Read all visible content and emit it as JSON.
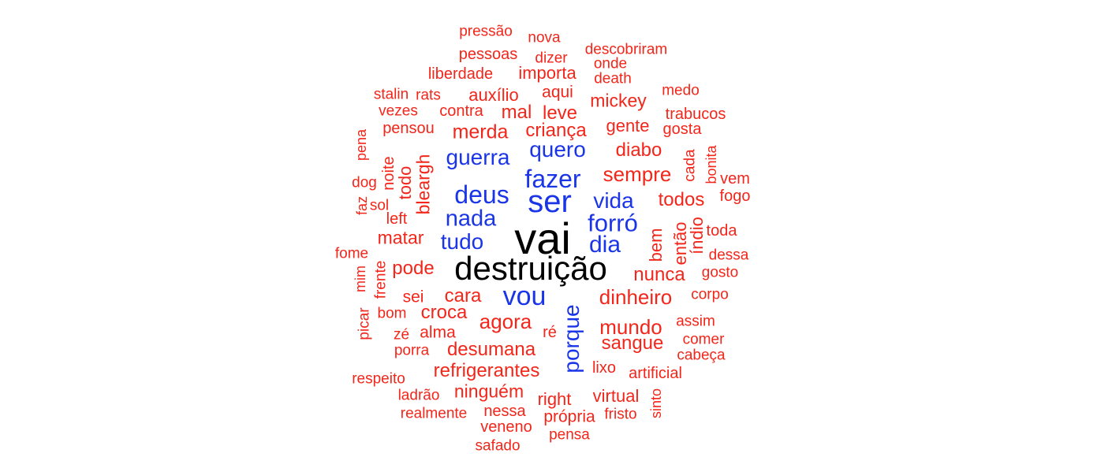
{
  "colors": {
    "top": "#000000",
    "mid": "#1a35e8",
    "low": "#f2261a",
    "background": "#ffffff"
  },
  "words": [
    {
      "text": "vai",
      "tier": "top"
    },
    {
      "text": "destruição",
      "tier": "top"
    },
    {
      "text": "ser",
      "tier": "mid"
    },
    {
      "text": "fazer",
      "tier": "mid"
    },
    {
      "text": "deus",
      "tier": "mid"
    },
    {
      "text": "vou",
      "tier": "mid"
    },
    {
      "text": "porque",
      "tier": "mid"
    },
    {
      "text": "forró",
      "tier": "mid"
    },
    {
      "text": "nada",
      "tier": "mid"
    },
    {
      "text": "dia",
      "tier": "mid"
    },
    {
      "text": "tudo",
      "tier": "mid"
    },
    {
      "text": "guerra",
      "tier": "mid"
    },
    {
      "text": "quero",
      "tier": "mid"
    },
    {
      "text": "vida",
      "tier": "mid"
    },
    {
      "text": "pressão",
      "tier": "low"
    },
    {
      "text": "nova",
      "tier": "low"
    },
    {
      "text": "descobriram",
      "tier": "low"
    },
    {
      "text": "pessoas",
      "tier": "low"
    },
    {
      "text": "dizer",
      "tier": "low"
    },
    {
      "text": "onde",
      "tier": "low"
    },
    {
      "text": "liberdade",
      "tier": "low"
    },
    {
      "text": "importa",
      "tier": "low"
    },
    {
      "text": "death",
      "tier": "low"
    },
    {
      "text": "stalin",
      "tier": "low"
    },
    {
      "text": "rats",
      "tier": "low"
    },
    {
      "text": "auxílio",
      "tier": "low"
    },
    {
      "text": "aqui",
      "tier": "low"
    },
    {
      "text": "medo",
      "tier": "low"
    },
    {
      "text": "mickey",
      "tier": "low"
    },
    {
      "text": "vezes",
      "tier": "low"
    },
    {
      "text": "contra",
      "tier": "low"
    },
    {
      "text": "mal",
      "tier": "low"
    },
    {
      "text": "leve",
      "tier": "low"
    },
    {
      "text": "trabucos",
      "tier": "low"
    },
    {
      "text": "pensou",
      "tier": "low"
    },
    {
      "text": "merda",
      "tier": "low"
    },
    {
      "text": "criança",
      "tier": "low"
    },
    {
      "text": "gente",
      "tier": "low"
    },
    {
      "text": "gosta",
      "tier": "low"
    },
    {
      "text": "pena",
      "tier": "low"
    },
    {
      "text": "diabo",
      "tier": "low"
    },
    {
      "text": "bonita",
      "tier": "low"
    },
    {
      "text": "noite",
      "tier": "low"
    },
    {
      "text": "todo",
      "tier": "low"
    },
    {
      "text": "bleargh",
      "tier": "low"
    },
    {
      "text": "sempre",
      "tier": "low"
    },
    {
      "text": "cada",
      "tier": "low"
    },
    {
      "text": "vem",
      "tier": "low"
    },
    {
      "text": "dog",
      "tier": "low"
    },
    {
      "text": "fogo",
      "tier": "low"
    },
    {
      "text": "faz",
      "tier": "low"
    },
    {
      "text": "sol",
      "tier": "low"
    },
    {
      "text": "todos",
      "tier": "low"
    },
    {
      "text": "left",
      "tier": "low"
    },
    {
      "text": "toda",
      "tier": "low"
    },
    {
      "text": "índio",
      "tier": "low"
    },
    {
      "text": "matar",
      "tier": "low"
    },
    {
      "text": "então",
      "tier": "low"
    },
    {
      "text": "bem",
      "tier": "low"
    },
    {
      "text": "fome",
      "tier": "low"
    },
    {
      "text": "dessa",
      "tier": "low"
    },
    {
      "text": "frente",
      "tier": "low"
    },
    {
      "text": "pode",
      "tier": "low"
    },
    {
      "text": "gosto",
      "tier": "low"
    },
    {
      "text": "nunca",
      "tier": "low"
    },
    {
      "text": "mim",
      "tier": "low"
    },
    {
      "text": "sei",
      "tier": "low"
    },
    {
      "text": "cara",
      "tier": "low"
    },
    {
      "text": "corpo",
      "tier": "low"
    },
    {
      "text": "dinheiro",
      "tier": "low"
    },
    {
      "text": "bom",
      "tier": "low"
    },
    {
      "text": "croca",
      "tier": "low"
    },
    {
      "text": "assim",
      "tier": "low"
    },
    {
      "text": "agora",
      "tier": "low"
    },
    {
      "text": "picar",
      "tier": "low"
    },
    {
      "text": "mundo",
      "tier": "low"
    },
    {
      "text": "zé",
      "tier": "low"
    },
    {
      "text": "alma",
      "tier": "low"
    },
    {
      "text": "ré",
      "tier": "low"
    },
    {
      "text": "comer",
      "tier": "low"
    },
    {
      "text": "sangue",
      "tier": "low"
    },
    {
      "text": "porra",
      "tier": "low"
    },
    {
      "text": "desumana",
      "tier": "low"
    },
    {
      "text": "cabeça",
      "tier": "low"
    },
    {
      "text": "lixo",
      "tier": "low"
    },
    {
      "text": "refrigerantes",
      "tier": "low"
    },
    {
      "text": "artificial",
      "tier": "low"
    },
    {
      "text": "respeito",
      "tier": "low"
    },
    {
      "text": "ninguém",
      "tier": "low"
    },
    {
      "text": "ladrão",
      "tier": "low"
    },
    {
      "text": "right",
      "tier": "low"
    },
    {
      "text": "virtual",
      "tier": "low"
    },
    {
      "text": "sinto",
      "tier": "low"
    },
    {
      "text": "nessa",
      "tier": "low"
    },
    {
      "text": "realmente",
      "tier": "low"
    },
    {
      "text": "própria",
      "tier": "low"
    },
    {
      "text": "fristo",
      "tier": "low"
    },
    {
      "text": "veneno",
      "tier": "low"
    },
    {
      "text": "pensa",
      "tier": "low"
    },
    {
      "text": "safado",
      "tier": "low"
    }
  ]
}
